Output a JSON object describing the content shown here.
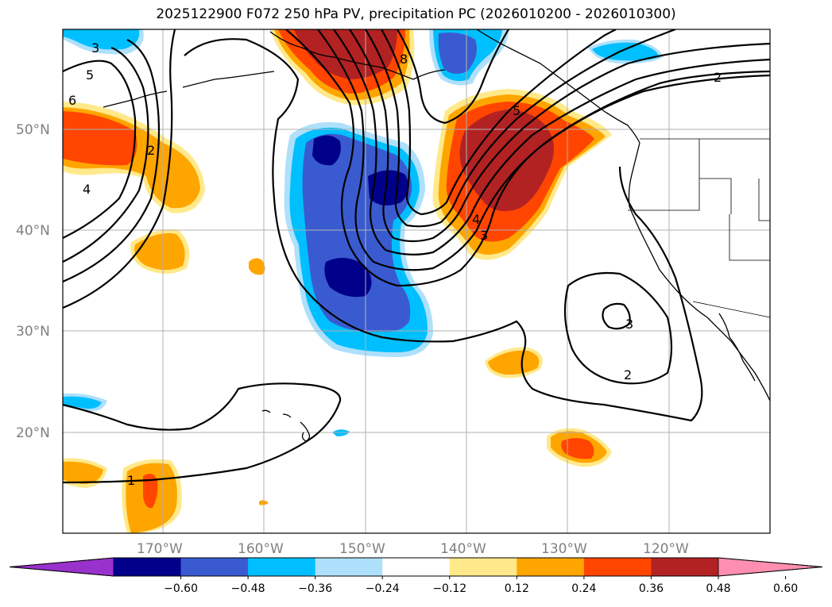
{
  "title": "2025122900 F072 250 hPa PV, precipitation PC (2026010200 - 2026010300)",
  "map": {
    "lat_labels": [
      "50°N",
      "40°N",
      "30°N",
      "20°N"
    ],
    "lon_labels": [
      "170°W",
      "160°W",
      "150°W",
      "140°W",
      "130°W",
      "120°W"
    ],
    "pv_contour_labels": [
      "3",
      "5",
      "6",
      "2",
      "4",
      "8",
      "5",
      "4",
      "3",
      "2",
      "3",
      "2",
      "1"
    ]
  },
  "colorbar": {
    "ticks": [
      "−0.60",
      "−0.48",
      "−0.36",
      "−0.24",
      "−0.12",
      "0.12",
      "0.24",
      "0.36",
      "0.48",
      "0.60"
    ],
    "colors": [
      "#9932cc",
      "#00008b",
      "#3a5bcf",
      "#00bfff",
      "#afe0fb",
      "#ffffff",
      "#ffe98a",
      "#ffa500",
      "#ff4500",
      "#b22222",
      "#ff8fb0"
    ]
  }
}
